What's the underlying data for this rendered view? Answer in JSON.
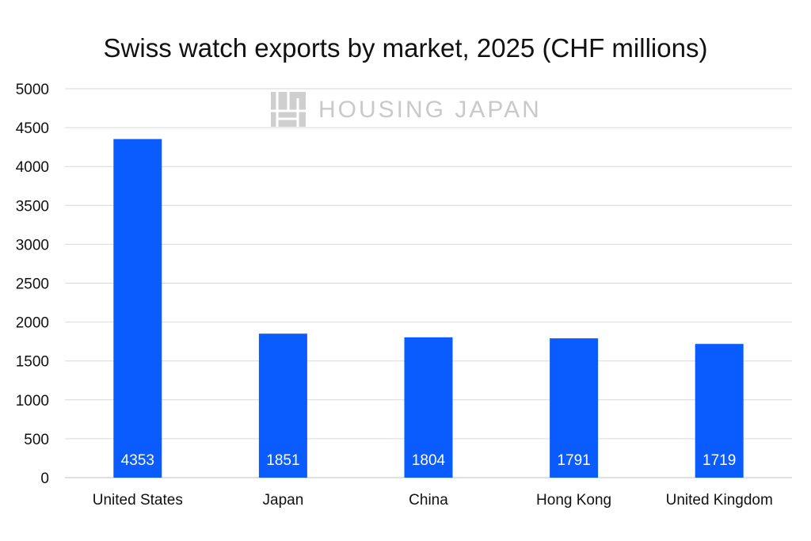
{
  "chart_data": {
    "type": "bar",
    "title": "Swiss watch exports by market, 2025 (CHF millions)",
    "categories": [
      "United States",
      "Japan",
      "China",
      "Hong Kong",
      "United Kingdom"
    ],
    "values": [
      4353,
      1851,
      1804,
      1791,
      1719
    ],
    "data_labels": [
      "4353",
      "1851",
      "1804",
      "1791",
      "1719"
    ],
    "yticks": [
      "0",
      "500",
      "1000",
      "1500",
      "2000",
      "2500",
      "3000",
      "3500",
      "4000",
      "4500",
      "5000"
    ],
    "ylim": [
      0,
      5000
    ],
    "xlabel": "",
    "ylabel": "",
    "grid": true,
    "legend": "none",
    "bar_color": "#0a5cff",
    "grid_color": "#d9d9d9"
  },
  "watermark": {
    "text": "HOUSING JAPAN",
    "icon": "housing-japan-logo-icon"
  }
}
